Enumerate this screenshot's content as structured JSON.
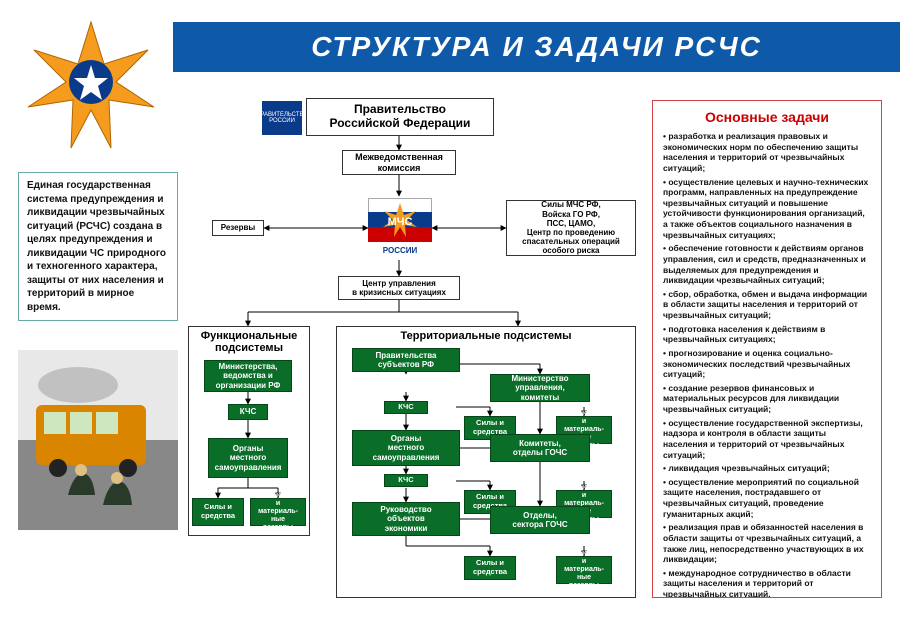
{
  "title": "СТРУКТУРА  И  ЗАДАЧИ  РСЧС",
  "colors": {
    "header": "#0f5aa8",
    "green": "#0a6e29",
    "greenBorder": "#054518",
    "red": "#c00",
    "taskBorder": "#c44"
  },
  "intro": "Единая государственная система предупреждения и ликвидации чрезвычайных ситуаций (РСЧС) создана в целях предупреждения и ликвидации ЧС природного и техногенного характера, защиты от них населения и территорий в мирное время.",
  "tasks_title": "Основные задачи",
  "tasks": [
    "разработка и реализация правовых и экономических норм по обеспечению защиты населения и территорий от чрезвычайных ситуаций;",
    "осуществление целевых и научно-технических программ, направленных на предупреждение чрезвычайных ситуаций и повышение устойчивости функционирования организаций, а также объектов социального назначения в чрезвычайных ситуациях;",
    "обеспечение готовности к действиям органов управления, сил и средств, предназначенных и выделяемых для предупреждения и ликвидации чрезвычайных ситуаций;",
    "сбор, обработка, обмен и выдача информации в области защиты населения и территорий от чрезвычайных ситуаций;",
    "подготовка населения к действиям в чрезвычайных ситуациях;",
    "прогнозирование и оценка социально-экономических последствий чрезвычайных ситуаций;",
    "создание резервов финансовых и материальных ресурсов для ликвидации чрезвычайных ситуаций;",
    "осуществление государственной экспертизы, надзора и контроля в области защиты населения и территорий от чрезвычайных ситуаций;",
    "ликвидация чрезвычайных ситуаций;",
    "осуществление мероприятий по социальной защите населения, пострадавшего от чрезвычайных ситуаций, проведение гуманитарных акций;",
    "реализация прав и обязанностей населения в области защиты от чрезвычайных ситуаций, а также лиц, непосредственно участвующих в их ликвидации;",
    "международное сотрудничество в области защиты населения и территорий от чрезвычайных ситуаций."
  ],
  "gov_logo": "ПРАВИТЕЛЬСТВО РОССИИ",
  "mchs_label": "РОССИИ",
  "nodes": {
    "government": "Правительство\nРоссийской Федерации",
    "commission": "Межведомственная\nкомиссия",
    "reserves": "Резервы",
    "forces": "Силы МЧС РФ,\nВойска ГО РФ,\nПСС, ЦАМО,\nЦентр по проведению\nспасательных операций\nособого риска",
    "crisis": "Центр управления\nв кризисных  ситуациях",
    "func_title": "Функциональные\nподсистемы",
    "terr_title": "Территориальные подсистемы",
    "ministries": "Министерства,\nведомства и\nорганизации РФ",
    "kchs": "КЧС",
    "local_gov": "Органы\nместного\nсамоуправления",
    "sily": "Силы и\nсредства",
    "fin": "Финансовые\nи материаль-\nные резервы",
    "prav_sub": "Правительства\nсубъектов РФ",
    "min_upr": "Министерство\nуправления,\nкомитеты",
    "orgsamoupr": "Органы\nместного\nсамоуправления",
    "komitety": "Комитеты,\nотделы ГОЧС",
    "ruk": "Руководство\nобъектов\nэкономики",
    "otdely": "Отделы,\nсектора ГОЧС"
  }
}
